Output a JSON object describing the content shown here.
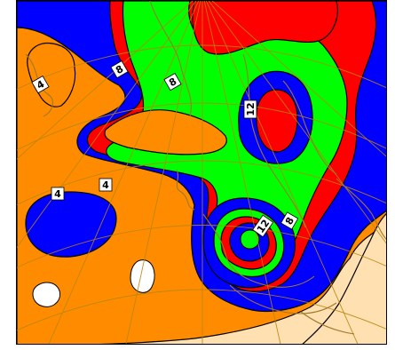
{
  "map": {
    "contour_labels": [
      {
        "id": "lbl-4-greenland",
        "text": "4"
      },
      {
        "id": "lbl-8-north-a",
        "text": "8"
      },
      {
        "id": "lbl-8-north-b",
        "text": "8"
      },
      {
        "id": "lbl-12-scandinavia",
        "text": "12"
      },
      {
        "id": "lbl-4-atlantic-a",
        "text": "4"
      },
      {
        "id": "lbl-4-atlantic-b",
        "text": "4"
      },
      {
        "id": "lbl-12-central-europe",
        "text": "12"
      },
      {
        "id": "lbl-8-east",
        "text": "8"
      }
    ],
    "field_colors": {
      "lowest": "#ffe0b0",
      "low": "#ff8c00",
      "mid": "#0000ff",
      "high": "#ff0000",
      "higher": "#00ff00",
      "grid": "#b8860b",
      "coast": "#a0782a"
    }
  }
}
